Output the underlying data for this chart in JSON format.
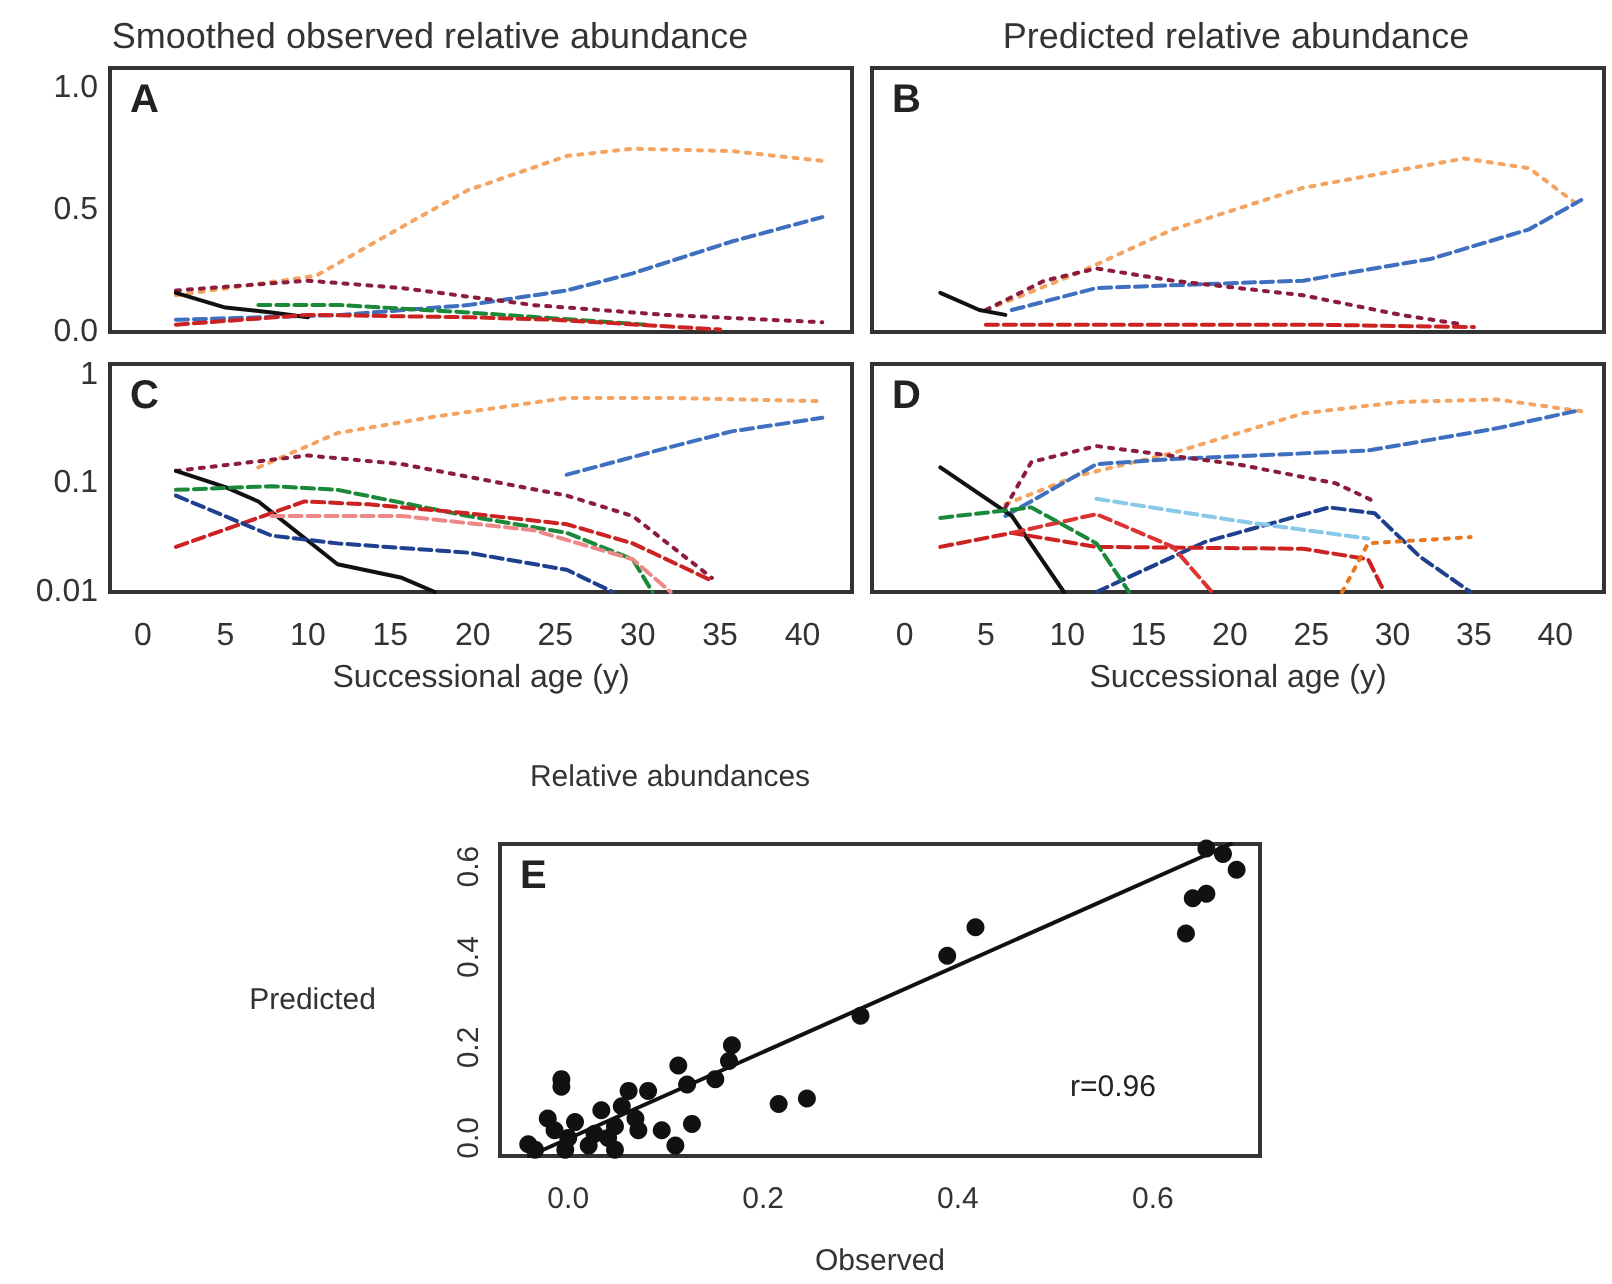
{
  "chart_data": [
    {
      "type": "line",
      "title": "Smoothed observed relative abundance",
      "annotations": [
        "A"
      ],
      "xlim": [
        -2,
        43
      ],
      "xticks": [
        0,
        5,
        10,
        15,
        20,
        25,
        30,
        35,
        40
      ],
      "ylim": [
        0,
        1.08
      ],
      "yticks": [
        {
          "value": 0,
          "label": "0.0"
        },
        {
          "value": 0.5,
          "label": "0.5"
        },
        {
          "value": 1,
          "label": "1.0"
        }
      ],
      "tick_labels": "y",
      "grid": false,
      "marker": "none",
      "series": [
        {
          "color": "#f4a460",
          "line_style": "dotted",
          "x": [
            2,
            10.5,
            15.7,
            19.7,
            25.7,
            29.7,
            35.7,
            41.2
          ],
          "values": [
            0.15,
            0.23,
            0.43,
            0.58,
            0.72,
            0.75,
            0.74,
            0.7
          ]
        },
        {
          "color": "#3f6fbf",
          "line_style": "dashed",
          "x": [
            2,
            12,
            19.7,
            25.7,
            29.7,
            35.7,
            41.2
          ],
          "values": [
            0.05,
            0.07,
            0.11,
            0.17,
            0.24,
            0.37,
            0.47
          ]
        },
        {
          "color": "#8b1c3c",
          "line_style": "dotted",
          "x": [
            2,
            10,
            15.7,
            23.7,
            31.7,
            41.2
          ],
          "values": [
            0.17,
            0.21,
            0.18,
            0.11,
            0.07,
            0.04
          ]
        },
        {
          "color": "#111111",
          "line_style": "solid",
          "x": [
            2,
            5,
            7.8,
            10
          ],
          "values": [
            0.16,
            0.1,
            0.08,
            0.06
          ]
        },
        {
          "color": "#1a8a3a",
          "line_style": "dashed",
          "x": [
            7,
            12,
            19.7,
            30.5
          ],
          "values": [
            0.11,
            0.11,
            0.08,
            0.03
          ]
        },
        {
          "color": "#cc2222",
          "line_style": "dashed",
          "x": [
            2,
            10,
            20,
            25,
            35
          ],
          "values": [
            0.03,
            0.07,
            0.06,
            0.05,
            0.01
          ]
        }
      ]
    },
    {
      "type": "line",
      "title": "Predicted relative abundance",
      "annotations": [
        "B"
      ],
      "xlim": [
        -2,
        43
      ],
      "xticks": [
        0,
        5,
        10,
        15,
        20,
        25,
        30,
        35,
        40
      ],
      "ylim": [
        0,
        1.08
      ],
      "yticks": [
        0,
        0.5,
        1
      ],
      "tick_labels": false,
      "grid": false,
      "marker": "none",
      "series": [
        {
          "color": "#f4a460",
          "line_style": "dotted",
          "x": [
            5,
            10.6,
            16.5,
            24.5,
            34.4,
            38.4,
            41.6
          ],
          "values": [
            0.09,
            0.24,
            0.42,
            0.59,
            0.71,
            0.67,
            0.51
          ]
        },
        {
          "color": "#3f6fbf",
          "line_style": "dashed",
          "x": [
            6.6,
            11.8,
            24.5,
            32.4,
            38.4,
            41.6
          ],
          "values": [
            0.09,
            0.18,
            0.21,
            0.3,
            0.42,
            0.54
          ]
        },
        {
          "color": "#8b1c3c",
          "line_style": "dotted",
          "x": [
            5,
            8.6,
            11.8,
            16.5,
            24.5,
            30.5,
            34.4
          ],
          "values": [
            0.09,
            0.21,
            0.26,
            0.21,
            0.15,
            0.07,
            0.03
          ]
        },
        {
          "color": "#111111",
          "line_style": "solid",
          "x": [
            2.2,
            4.6,
            6.2
          ],
          "values": [
            0.16,
            0.09,
            0.07
          ]
        },
        {
          "color": "#cc2222",
          "line_style": "dashed",
          "x": [
            5,
            15,
            25,
            35
          ],
          "values": [
            0.03,
            0.03,
            0.03,
            0.02
          ]
        }
      ]
    },
    {
      "type": "line",
      "annotations": [
        "C"
      ],
      "xlabel": "Successional age (y)",
      "xlim": [
        -2,
        43
      ],
      "xticks": [
        0,
        5,
        10,
        15,
        20,
        25,
        30,
        35,
        40
      ],
      "ylim": [
        0.01,
        1.25
      ],
      "yticks": [
        0.01,
        0.1,
        1
      ],
      "log": "y",
      "grid": false,
      "marker": "none",
      "series": [
        {
          "color": "#f4a460",
          "line_style": "dotted",
          "x": [
            7,
            11.8,
            17.7,
            25.7,
            31.7,
            41.2
          ],
          "values": [
            0.14,
            0.29,
            0.41,
            0.61,
            0.61,
            0.57
          ]
        },
        {
          "color": "#3f6fbf",
          "line_style": "dashed",
          "x": [
            25.7,
            31.7,
            35.7,
            41.2
          ],
          "values": [
            0.12,
            0.21,
            0.3,
            0.4
          ]
        },
        {
          "color": "#8b1c3c",
          "line_style": "dotted",
          "x": [
            2,
            10,
            15.7,
            25.7,
            29.7,
            34.5
          ],
          "values": [
            0.13,
            0.18,
            0.15,
            0.077,
            0.05,
            0.0135
          ]
        },
        {
          "color": "#111111",
          "line_style": "solid",
          "x": [
            2,
            5,
            7,
            11.8,
            15.7,
            17.7
          ],
          "values": [
            0.13,
            0.092,
            0.068,
            0.018,
            0.0135,
            0.01
          ]
        },
        {
          "color": "#1a8a3a",
          "line_style": "dashed",
          "x": [
            2,
            7.8,
            11.8,
            19.7,
            25.7,
            29.7,
            30.9
          ],
          "values": [
            0.087,
            0.094,
            0.087,
            0.05,
            0.035,
            0.02,
            0.01
          ]
        },
        {
          "color": "#cc2222",
          "line_style": "dashed",
          "x": [
            2,
            9.8,
            13.7,
            19.7,
            25.7,
            29.7,
            34.5
          ],
          "values": [
            0.026,
            0.068,
            0.064,
            0.053,
            0.042,
            0.028,
            0.0127
          ]
        },
        {
          "color": "#ee8888",
          "line_style": "dashed",
          "x": [
            7.8,
            15.7,
            23.7,
            29.7,
            32
          ],
          "values": [
            0.05,
            0.05,
            0.037,
            0.02,
            0.01
          ]
        },
        {
          "color": "#1f3f8f",
          "line_style": "dashed",
          "x": [
            2,
            7.8,
            11.8,
            19.7,
            25.7,
            28.5
          ],
          "values": [
            0.077,
            0.033,
            0.028,
            0.023,
            0.016,
            0.01
          ]
        }
      ]
    },
    {
      "type": "line",
      "annotations": [
        "D"
      ],
      "xlabel": "Successional age (y)",
      "xlim": [
        -2,
        43
      ],
      "xticks": [
        0,
        5,
        10,
        15,
        20,
        25,
        30,
        35,
        40
      ],
      "ylim": [
        0.01,
        1.25
      ],
      "yticks": [
        0.01,
        0.1,
        1
      ],
      "log": "y",
      "tick_labels": "x",
      "grid": false,
      "marker": "none",
      "series": [
        {
          "color": "#f4a460",
          "line_style": "dotted",
          "x": [
            6.2,
            10.6,
            16.5,
            24.5,
            30.5,
            36.4,
            41.6
          ],
          "values": [
            0.064,
            0.117,
            0.19,
            0.44,
            0.56,
            0.59,
            0.46
          ]
        },
        {
          "color": "#3f6fbf",
          "line_style": "dashed",
          "x": [
            6.2,
            11.8,
            16.5,
            28.5,
            36.4,
            41.2
          ],
          "values": [
            0.05,
            0.15,
            0.167,
            0.2,
            0.32,
            0.46
          ]
        },
        {
          "color": "#8b1c3c",
          "line_style": "dotted",
          "x": [
            6.2,
            7.8,
            11.8,
            20.5,
            26.5,
            28.9
          ],
          "values": [
            0.06,
            0.157,
            0.22,
            0.149,
            0.1,
            0.068
          ]
        },
        {
          "color": "#111111",
          "line_style": "solid",
          "x": [
            2.2,
            6.6,
            9.8
          ],
          "values": [
            0.14,
            0.05,
            0.01
          ]
        },
        {
          "color": "#1f3f8f",
          "line_style": "dashed",
          "x": [
            11.8,
            18.5,
            26.1,
            28.9,
            31.7,
            34.8
          ],
          "values": [
            0.01,
            0.029,
            0.06,
            0.053,
            0.021,
            0.01
          ]
        },
        {
          "color": "#cc2222",
          "line_style": "dashed",
          "x": [
            2.2,
            6.6,
            11.8,
            24.5,
            28.5,
            29.5
          ],
          "values": [
            0.026,
            0.035,
            0.026,
            0.025,
            0.02,
            0.01
          ]
        },
        {
          "color": "#dd3333",
          "line_style": "dashed",
          "x": [
            6.6,
            11.8,
            16.5,
            18.9
          ],
          "values": [
            0.035,
            0.052,
            0.026,
            0.01
          ]
        },
        {
          "color": "#e87820",
          "line_style": "dotted",
          "x": [
            26.9,
            28.5,
            34.8
          ],
          "values": [
            0.01,
            0.028,
            0.032
          ]
        },
        {
          "color": "#88c8e8",
          "line_style": "dashed",
          "x": [
            11.8,
            20.5,
            28.5
          ],
          "values": [
            0.072,
            0.045,
            0.031
          ]
        },
        {
          "color": "#1a8a3a",
          "line_style": "dashed",
          "x": [
            2.2,
            7.8,
            11.8,
            13.8
          ],
          "values": [
            0.048,
            0.06,
            0.028,
            0.01
          ]
        }
      ]
    },
    {
      "type": "scatter",
      "title": "Relative abundances",
      "xlabel": "Observed",
      "ylabel": "Predicted",
      "annotations": [
        "E",
        "r=0.96"
      ],
      "xlim": [
        -0.07,
        0.71
      ],
      "xticks": [
        {
          "value": 0,
          "label": "0.0"
        },
        {
          "value": 0.2,
          "label": "0.2"
        },
        {
          "value": 0.4,
          "label": "0.4"
        },
        {
          "value": 0.6,
          "label": "0.6"
        }
      ],
      "ylim": [
        -0.04,
        0.65
      ],
      "yticks": [
        {
          "value": 0,
          "label": "0.0"
        },
        {
          "value": 0.2,
          "label": "0.2"
        },
        {
          "value": 0.4,
          "label": "0.4"
        },
        {
          "value": 0.6,
          "label": "0.6"
        }
      ],
      "grid": false,
      "series": [
        {
          "marker": "circle",
          "color": "#111111",
          "x": [
            0.672,
            0.686,
            0.655,
            0.655,
            0.641,
            0.634,
            0.418,
            0.389,
            0.3,
            0.245,
            0.216,
            0.168,
            0.165,
            0.151,
            0.113,
            0.122,
            0.127,
            0.11,
            0.082,
            0.062,
            0.072,
            0.096,
            -0.007,
            -0.007,
            -0.041,
            -0.021,
            0.034,
            0.048,
            0.014,
            0,
            0.021,
            0.055,
            0.007,
            0.027,
            0.041,
            -0.014,
            -0.003,
            -0.034,
            0.069,
            0.048
          ],
          "values": [
            0.628,
            0.593,
            0.64,
            0.54,
            0.53,
            0.452,
            0.466,
            0.403,
            0.27,
            0.087,
            0.075,
            0.205,
            0.17,
            0.13,
            0.16,
            0.118,
            0.031,
            -0.017,
            0.104,
            0.104,
            0.017,
            0.017,
            0.13,
            0.113,
            -0.014,
            0.043,
            0.061,
            0.026,
            null,
            0,
            -0.017,
            0.07,
            0.035,
            0.009,
            0,
            0.017,
            -0.026,
            -0.026,
            0.043,
            -0.026
          ]
        },
        {
          "type": "line",
          "marker": "none",
          "line_style": "solid",
          "color": "#111111",
          "x": [
            -0.04,
            0.68
          ],
          "values": [
            -0.04,
            0.65
          ]
        }
      ]
    }
  ]
}
